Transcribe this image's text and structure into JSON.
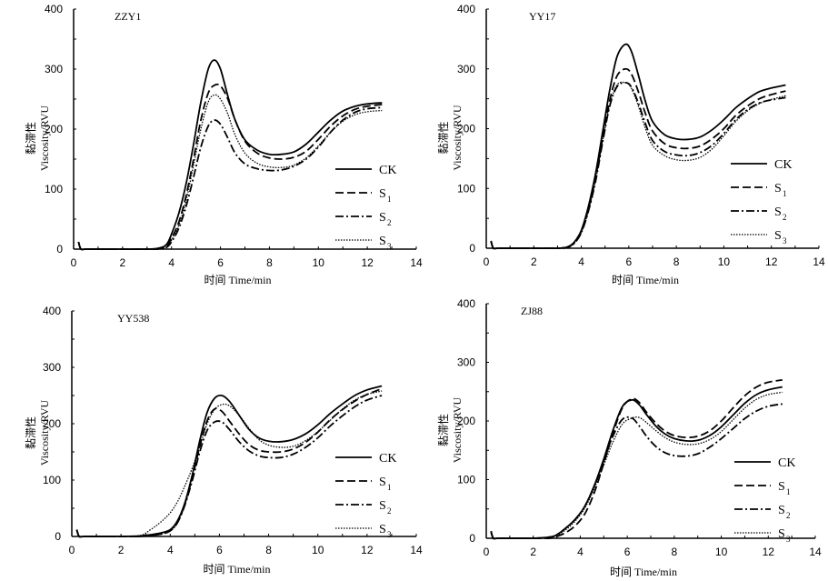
{
  "chart_data": [
    {
      "type": "line",
      "title": "ZZY1",
      "xlabel": "时间 Time/min",
      "ylabel_cn": "黏滞性",
      "ylabel_en": "Viscosity/RVU",
      "xlim": [
        0,
        14
      ],
      "ylim": [
        0,
        400
      ],
      "xticks": [
        0,
        2,
        4,
        6,
        8,
        10,
        12,
        14
      ],
      "yticks": [
        0,
        100,
        200,
        300,
        400
      ],
      "grid": false,
      "legend_position": "bottom-right",
      "x": [
        0.2,
        0.3,
        0.5,
        1,
        2,
        3,
        3.5,
        3.8,
        4.0,
        4.3,
        4.6,
        4.9,
        5.2,
        5.5,
        5.75,
        6.0,
        6.3,
        6.6,
        7.0,
        7.5,
        8.0,
        8.5,
        9.0,
        9.5,
        10.0,
        10.5,
        11.0,
        11.5,
        12.0,
        12.6
      ],
      "series": [
        {
          "name": "CK",
          "sub": "",
          "style": "solid",
          "values": [
            12,
            0,
            0,
            0,
            0,
            0,
            2,
            8,
            25,
            60,
            110,
            175,
            245,
            300,
            315,
            300,
            255,
            215,
            182,
            165,
            158,
            158,
            162,
            175,
            195,
            215,
            230,
            238,
            242,
            244
          ]
        },
        {
          "name": "S",
          "sub": "1",
          "style": "dash",
          "values": [
            12,
            0,
            0,
            0,
            0,
            0,
            1,
            5,
            18,
            45,
            90,
            150,
            215,
            260,
            273,
            272,
            250,
            215,
            180,
            160,
            152,
            150,
            153,
            163,
            183,
            205,
            222,
            233,
            238,
            241
          ]
        },
        {
          "name": "S",
          "sub": "2",
          "style": "dashdot",
          "values": [
            12,
            0,
            0,
            0,
            0,
            0,
            0,
            3,
            12,
            35,
            72,
            120,
            170,
            205,
            215,
            208,
            185,
            160,
            142,
            134,
            131,
            132,
            138,
            150,
            170,
            195,
            215,
            228,
            234,
            236
          ]
        },
        {
          "name": "S",
          "sub": "3",
          "style": "dot",
          "values": [
            12,
            0,
            0,
            0,
            0,
            0,
            1,
            4,
            15,
            40,
            82,
            140,
            200,
            245,
            257,
            250,
            225,
            190,
            160,
            143,
            137,
            136,
            140,
            152,
            172,
            195,
            213,
            224,
            229,
            231
          ]
        }
      ]
    },
    {
      "type": "line",
      "title": "YY17",
      "xlabel": "时间 Time/min",
      "ylabel_cn": "黏滞性",
      "ylabel_en": "Viscosity/RVU",
      "xlim": [
        0,
        14
      ],
      "ylim": [
        0,
        400
      ],
      "xticks": [
        0,
        2,
        4,
        6,
        8,
        10,
        12,
        14
      ],
      "yticks": [
        0,
        100,
        200,
        300,
        400
      ],
      "grid": false,
      "legend_position": "bottom-right",
      "x": [
        0.2,
        0.3,
        0.5,
        1,
        2,
        3,
        3.4,
        3.7,
        4.0,
        4.3,
        4.6,
        4.9,
        5.2,
        5.5,
        5.85,
        6.1,
        6.4,
        6.7,
        7.0,
        7.5,
        8.0,
        8.5,
        9.0,
        9.5,
        10.0,
        10.5,
        11.0,
        11.5,
        12.0,
        12.6
      ],
      "series": [
        {
          "name": "CK",
          "sub": "",
          "style": "solid",
          "values": [
            12,
            0,
            0,
            0,
            0,
            0,
            2,
            10,
            30,
            70,
            125,
            195,
            265,
            320,
            341,
            330,
            290,
            245,
            212,
            190,
            183,
            182,
            186,
            198,
            215,
            235,
            250,
            262,
            268,
            273
          ]
        },
        {
          "name": "S",
          "sub": "1",
          "style": "dash",
          "values": [
            12,
            0,
            0,
            0,
            0,
            0,
            2,
            9,
            28,
            66,
            118,
            185,
            248,
            288,
            300,
            292,
            262,
            225,
            196,
            175,
            168,
            167,
            171,
            183,
            200,
            222,
            238,
            250,
            257,
            263
          ]
        },
        {
          "name": "S",
          "sub": "2",
          "style": "dashdot",
          "values": [
            12,
            0,
            0,
            0,
            0,
            0,
            1,
            8,
            26,
            62,
            112,
            178,
            238,
            270,
            277,
            270,
            243,
            208,
            180,
            162,
            156,
            155,
            160,
            172,
            192,
            215,
            232,
            243,
            248,
            252
          ]
        },
        {
          "name": "S",
          "sub": "3",
          "style": "dot",
          "values": [
            12,
            0,
            0,
            0,
            0,
            0,
            1,
            8,
            26,
            62,
            114,
            180,
            240,
            273,
            277,
            268,
            238,
            200,
            172,
            155,
            148,
            147,
            152,
            166,
            188,
            212,
            230,
            242,
            249,
            255
          ]
        }
      ]
    },
    {
      "type": "line",
      "title": "YY538",
      "xlabel": "时间  Time/min",
      "ylabel_cn": "黏滞性",
      "ylabel_en": "Viscosity/RVU",
      "xlim": [
        0,
        14
      ],
      "ylim": [
        0,
        400
      ],
      "xticks": [
        0,
        2,
        4,
        6,
        8,
        10,
        12,
        14
      ],
      "yticks": [
        0,
        100,
        200,
        300,
        400
      ],
      "grid": false,
      "legend_position": "bottom-right",
      "x": [
        0.2,
        0.3,
        0.5,
        1,
        2,
        2.8,
        3.2,
        3.6,
        4.0,
        4.3,
        4.6,
        4.9,
        5.2,
        5.5,
        5.8,
        6.1,
        6.4,
        6.8,
        7.2,
        7.6,
        8.0,
        8.5,
        9.0,
        9.5,
        10.0,
        10.5,
        11.0,
        11.5,
        12.0,
        12.6
      ],
      "series": [
        {
          "name": "CK",
          "sub": "",
          "style": "solid",
          "values": [
            12,
            0,
            0,
            0,
            0,
            1,
            3,
            6,
            12,
            28,
            60,
            110,
            170,
            220,
            245,
            250,
            240,
            215,
            190,
            175,
            169,
            168,
            172,
            182,
            198,
            218,
            235,
            250,
            260,
            267
          ]
        },
        {
          "name": "S",
          "sub": "1",
          "style": "dash",
          "values": [
            12,
            0,
            0,
            0,
            0,
            0,
            2,
            4,
            10,
            25,
            58,
            105,
            160,
            205,
            226,
            222,
            205,
            182,
            163,
            153,
            150,
            150,
            155,
            167,
            185,
            207,
            225,
            240,
            252,
            262
          ]
        },
        {
          "name": "S",
          "sub": "2",
          "style": "dashdot",
          "values": [
            12,
            0,
            0,
            0,
            0,
            0,
            2,
            4,
            10,
            25,
            56,
            100,
            150,
            188,
            203,
            203,
            190,
            168,
            152,
            143,
            140,
            140,
            146,
            158,
            175,
            196,
            214,
            230,
            242,
            250
          ]
        },
        {
          "name": "S",
          "sub": "3",
          "style": "dot",
          "values": [
            12,
            0,
            0,
            0,
            0,
            2,
            12,
            25,
            42,
            62,
            90,
            122,
            160,
            200,
            225,
            234,
            232,
            215,
            192,
            172,
            162,
            158,
            160,
            170,
            186,
            206,
            226,
            242,
            252,
            258
          ]
        }
      ]
    },
    {
      "type": "line",
      "title": "ZJ88",
      "xlabel": "时间 Time/min",
      "ylabel_cn": "黏滞性",
      "ylabel_en": "Viscosity/RVU",
      "xlim": [
        0,
        14
      ],
      "ylim": [
        0,
        400
      ],
      "xticks": [
        0,
        2,
        4,
        6,
        8,
        10,
        12,
        14
      ],
      "yticks": [
        0,
        100,
        200,
        300,
        400
      ],
      "grid": false,
      "legend_position": "bottom-right",
      "x": [
        0.2,
        0.3,
        0.5,
        1,
        2,
        2.7,
        3.0,
        3.4,
        3.8,
        4.2,
        4.6,
        5.0,
        5.4,
        5.8,
        6.2,
        6.5,
        6.8,
        7.2,
        7.6,
        8.0,
        8.5,
        9.0,
        9.5,
        10.0,
        10.5,
        11.0,
        11.5,
        12.0,
        12.6
      ],
      "series": [
        {
          "name": "CK",
          "sub": "",
          "style": "solid",
          "values": [
            12,
            0,
            0,
            0,
            0,
            2,
            6,
            18,
            33,
            55,
            90,
            135,
            185,
            225,
            236,
            228,
            212,
            192,
            178,
            170,
            166,
            167,
            175,
            190,
            210,
            230,
            245,
            253,
            258
          ]
        },
        {
          "name": "S",
          "sub": "1",
          "style": "dash",
          "values": [
            12,
            0,
            0,
            0,
            0,
            0,
            3,
            10,
            22,
            42,
            78,
            128,
            180,
            223,
            238,
            232,
            216,
            197,
            183,
            175,
            172,
            174,
            183,
            200,
            222,
            243,
            258,
            266,
            270
          ]
        },
        {
          "name": "S",
          "sub": "2",
          "style": "dashdot",
          "values": [
            12,
            0,
            0,
            0,
            0,
            2,
            6,
            18,
            33,
            55,
            90,
            132,
            175,
            203,
            205,
            192,
            175,
            157,
            146,
            141,
            140,
            144,
            155,
            170,
            187,
            204,
            217,
            225,
            229
          ]
        },
        {
          "name": "S",
          "sub": "3",
          "style": "dot",
          "values": [
            12,
            0,
            0,
            0,
            0,
            2,
            5,
            15,
            30,
            52,
            85,
            125,
            165,
            195,
            205,
            206,
            198,
            184,
            172,
            164,
            160,
            161,
            168,
            182,
            202,
            222,
            237,
            245,
            249
          ]
        }
      ]
    }
  ]
}
